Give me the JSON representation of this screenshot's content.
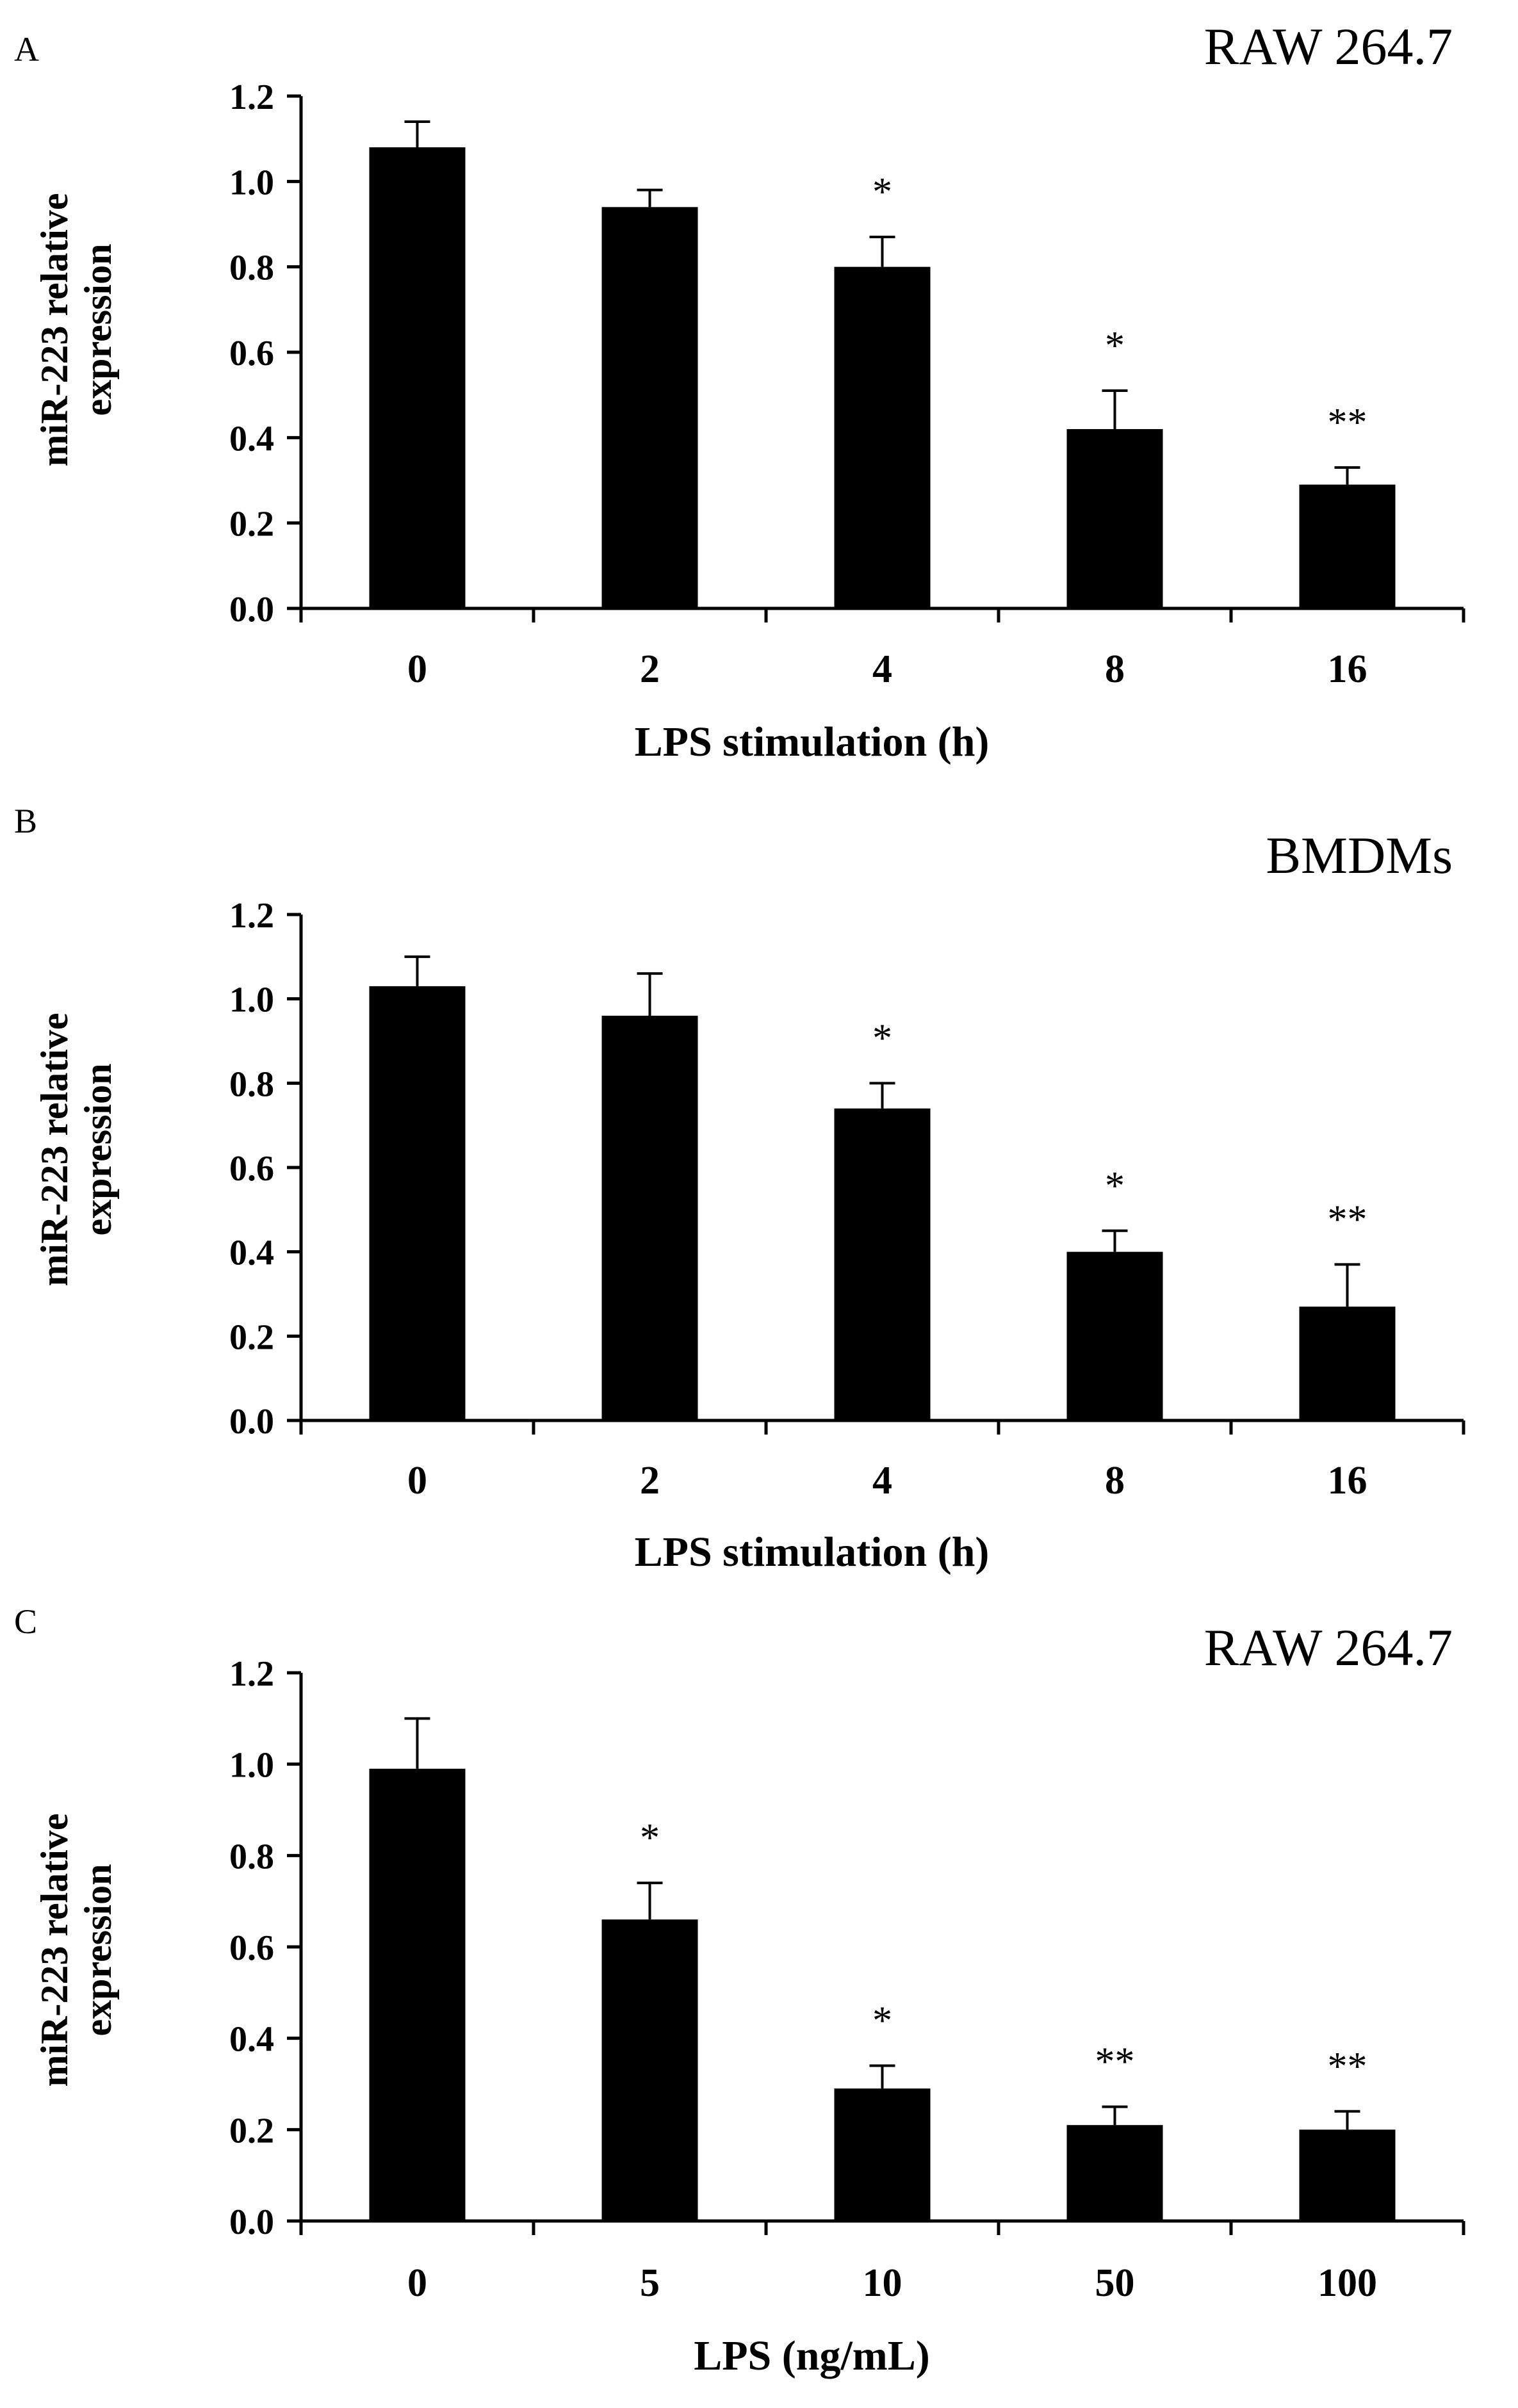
{
  "chart_data": [
    {
      "type": "bar",
      "panel": "A",
      "title": "RAW 264.7",
      "xlabel": "LPS stimulation (h)",
      "ylabel": [
        "miR-223 relative",
        "expression"
      ],
      "ylim": [
        0,
        1.2
      ],
      "yticks": [
        "0.0",
        "0.2",
        "0.4",
        "0.6",
        "0.8",
        "1.0",
        "1.2"
      ],
      "categories": [
        "0",
        "2",
        "4",
        "8",
        "16"
      ],
      "values": [
        1.08,
        0.94,
        0.8,
        0.42,
        0.29
      ],
      "errors": [
        0.06,
        0.04,
        0.07,
        0.09,
        0.04
      ],
      "significance": [
        "",
        "",
        "*",
        "*",
        "**"
      ]
    },
    {
      "type": "bar",
      "panel": "B",
      "title": "BMDMs",
      "xlabel": "LPS stimulation (h)",
      "ylabel": [
        "miR-223 relative",
        "expression"
      ],
      "ylim": [
        0,
        1.2
      ],
      "yticks": [
        "0.0",
        "0.2",
        "0.4",
        "0.6",
        "0.8",
        "1.0",
        "1.2"
      ],
      "categories": [
        "0",
        "2",
        "4",
        "8",
        "16"
      ],
      "values": [
        1.03,
        0.96,
        0.74,
        0.4,
        0.27
      ],
      "errors": [
        0.07,
        0.1,
        0.06,
        0.05,
        0.1
      ],
      "significance": [
        "",
        "",
        "*",
        "*",
        "**"
      ]
    },
    {
      "type": "bar",
      "panel": "C",
      "title": "RAW 264.7",
      "xlabel": "LPS (ng/mL)",
      "ylabel": [
        "miR-223 relative",
        "expression"
      ],
      "ylim": [
        0,
        1.2
      ],
      "yticks": [
        "0.0",
        "0.2",
        "0.4",
        "0.6",
        "0.8",
        "1.0",
        "1.2"
      ],
      "categories": [
        "0",
        "5",
        "10",
        "50",
        "100"
      ],
      "values": [
        0.99,
        0.66,
        0.29,
        0.21,
        0.2
      ],
      "errors": [
        0.11,
        0.08,
        0.05,
        0.04,
        0.04
      ],
      "significance": [
        "",
        "*",
        "*",
        "**",
        "**"
      ]
    }
  ]
}
